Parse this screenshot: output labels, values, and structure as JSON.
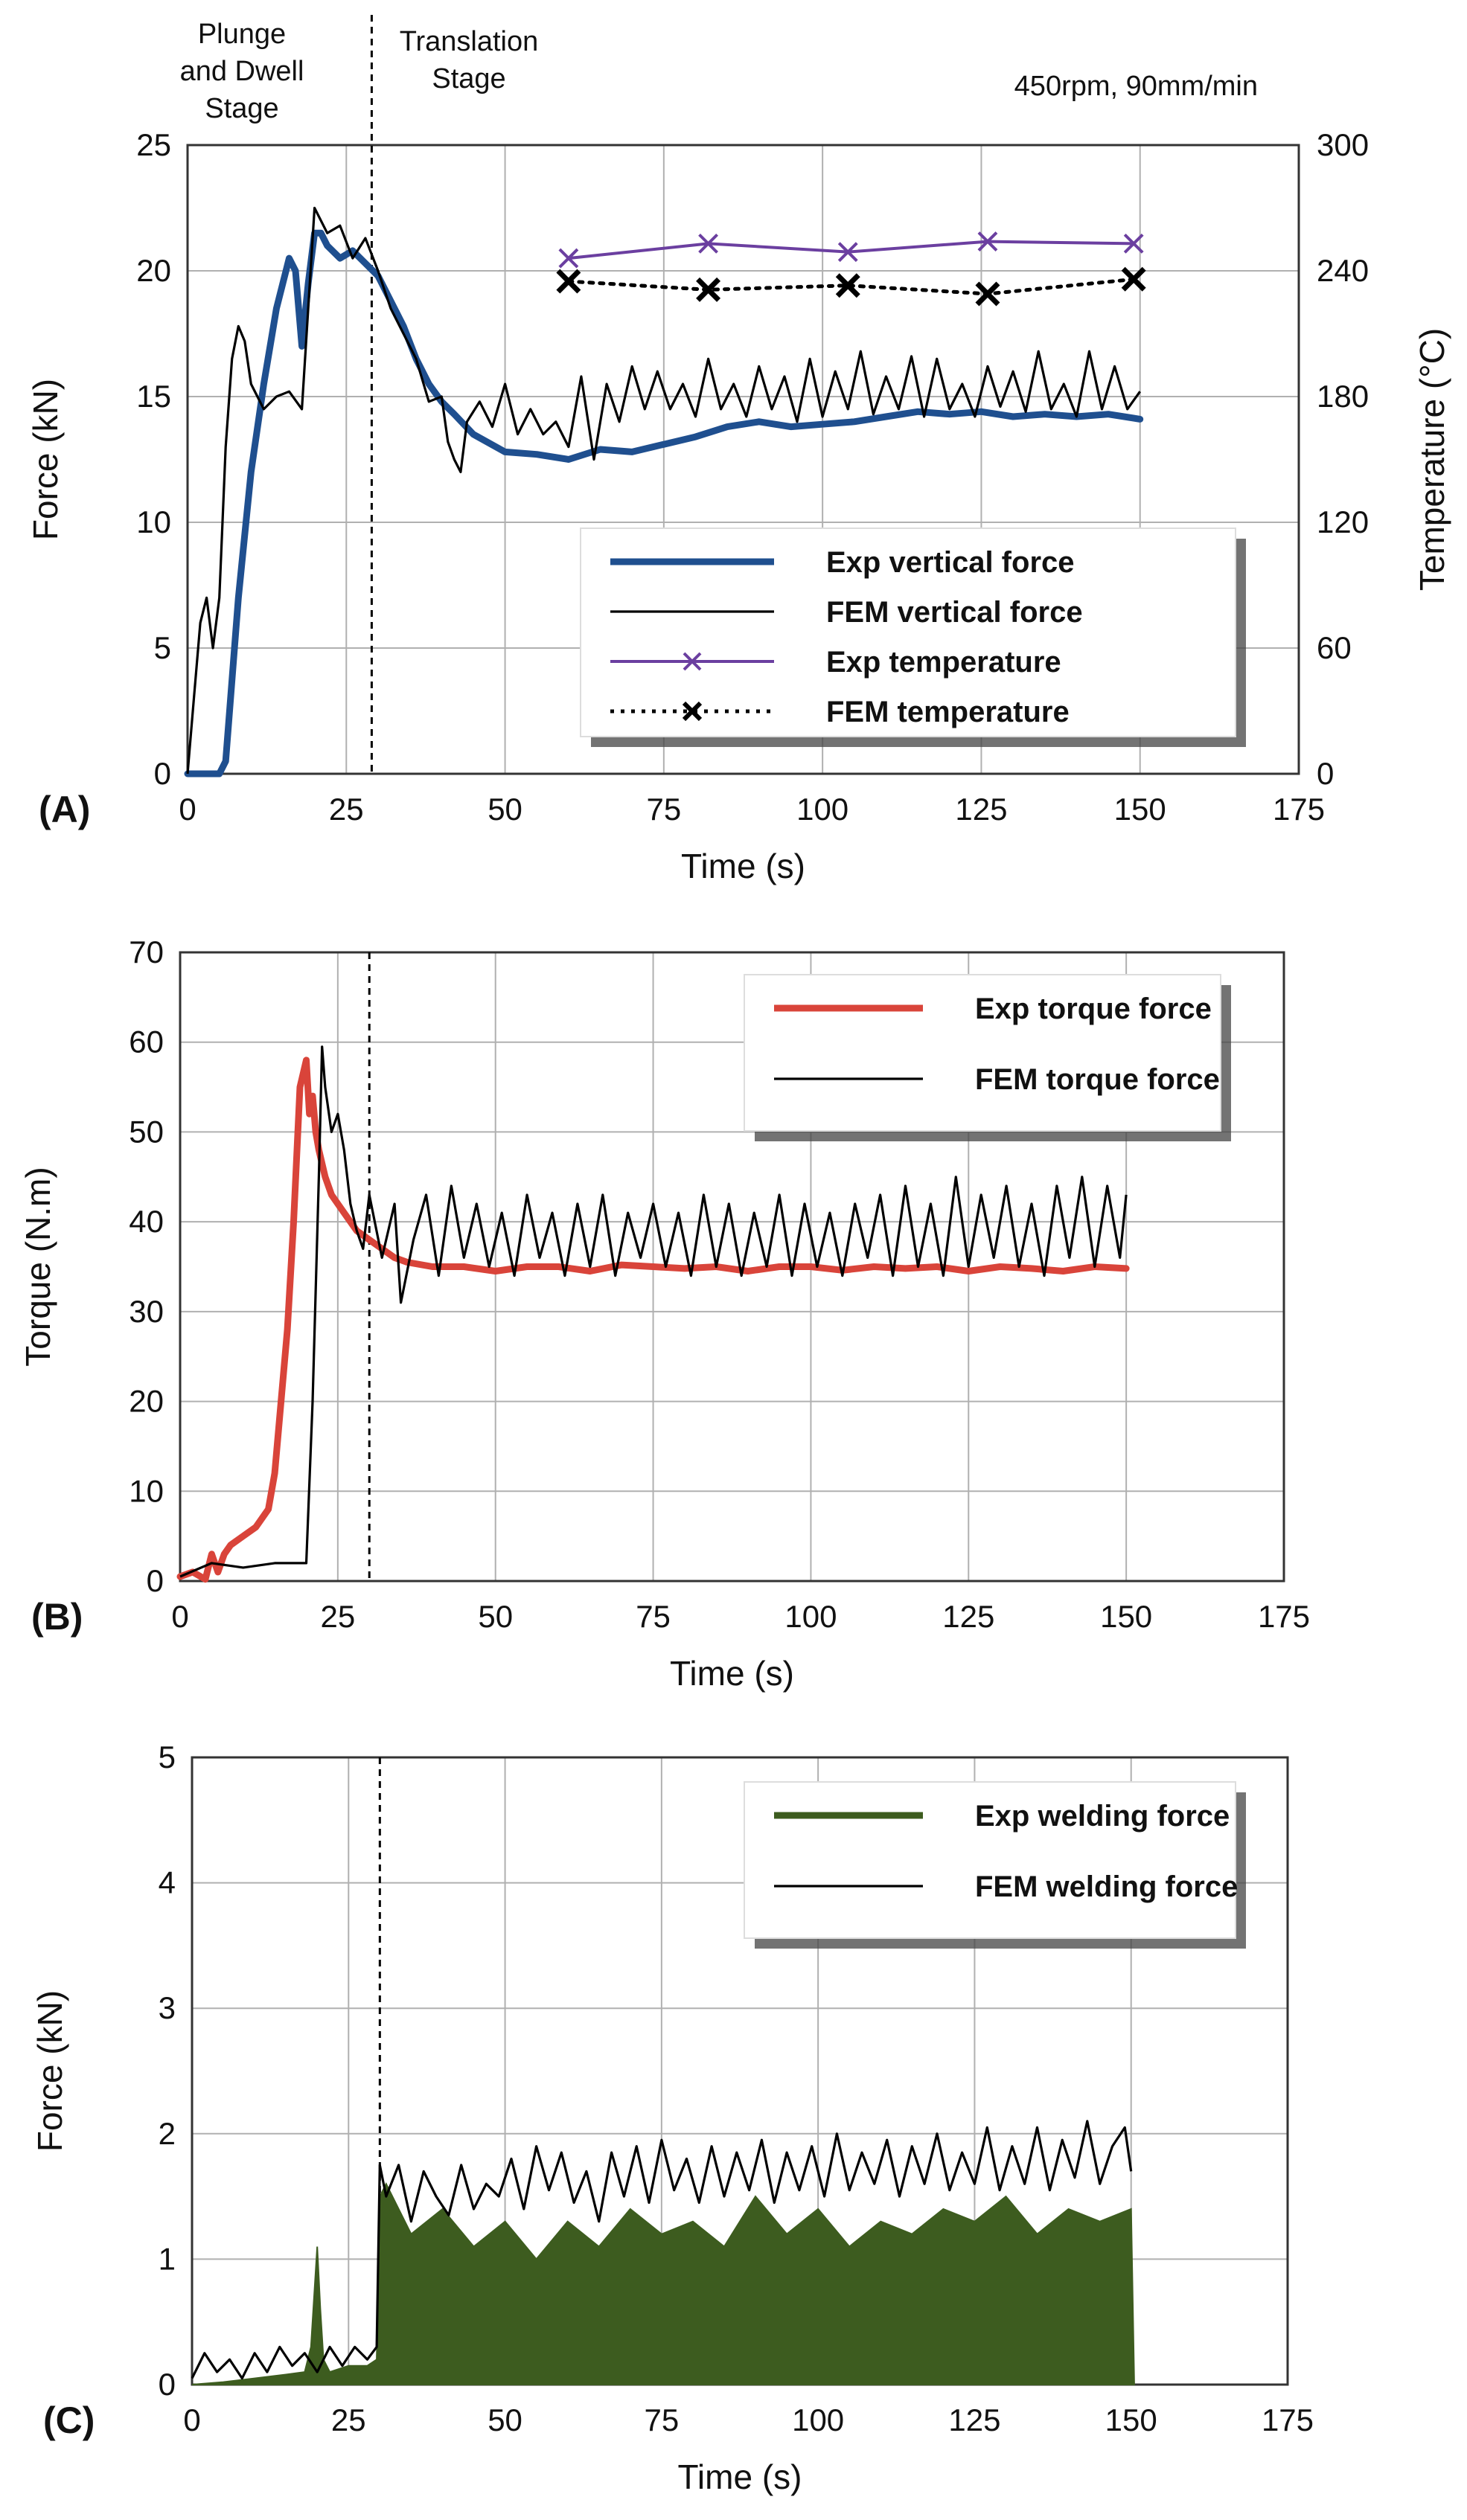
{
  "figure": {
    "annotations": {
      "stage1": [
        "Plunge",
        "and Dwell",
        "Stage"
      ],
      "stage2": [
        "Translation",
        "Stage"
      ],
      "params": "450rpm, 90mm/min"
    }
  },
  "colors": {
    "exp_vertical": "#1f4f8f",
    "fem": "#000000",
    "exp_temp": "#6b3fa0",
    "exp_torque": "#d9443a",
    "exp_weld": "#3d5c1f",
    "grid": "#b0b0b0"
  },
  "chart_data": [
    {
      "type": "line",
      "panel_label": "(A)",
      "xlabel": "Time (s)",
      "ylabel": "Force (kN)",
      "y2label": "Temperature (°C)",
      "xlim": [
        0,
        175
      ],
      "ylim": [
        0,
        25
      ],
      "y2lim": [
        0,
        300
      ],
      "xticks": [
        "0",
        "25",
        "50",
        "75",
        "100",
        "125",
        "150",
        "175"
      ],
      "yticks": [
        "0",
        "5",
        "10",
        "15",
        "20",
        "25"
      ],
      "y2ticks": [
        "0",
        "60",
        "120",
        "180",
        "240",
        "300"
      ],
      "stage_divider_x": 29,
      "legend_position": "bottom-right",
      "series": [
        {
          "name": "Exp vertical force",
          "axis": "left",
          "style": "thick",
          "color_key": "exp_vertical",
          "x": [
            0,
            5,
            6,
            8,
            10,
            12,
            14,
            16,
            17,
            18,
            19,
            20,
            21,
            22,
            24,
            26,
            28,
            30,
            32,
            34,
            36,
            38,
            40,
            42,
            45,
            50,
            55,
            60,
            65,
            70,
            75,
            80,
            85,
            90,
            95,
            100,
            105,
            110,
            115,
            120,
            125,
            130,
            135,
            140,
            145,
            150
          ],
          "values": [
            0,
            0,
            0.5,
            7,
            12,
            15.5,
            18.5,
            20.5,
            20,
            17,
            19.5,
            21.5,
            21.5,
            21,
            20.5,
            20.8,
            20.3,
            19.8,
            18.8,
            17.8,
            16.5,
            15.5,
            14.8,
            14.3,
            13.5,
            12.8,
            12.7,
            12.5,
            12.9,
            12.8,
            13.1,
            13.4,
            13.8,
            14.0,
            13.8,
            13.9,
            14.0,
            14.2,
            14.4,
            14.3,
            14.4,
            14.2,
            14.3,
            14.2,
            14.3,
            14.1
          ]
        },
        {
          "name": "FEM vertical force",
          "axis": "left",
          "style": "thin",
          "color_key": "fem",
          "x": [
            0,
            1,
            2,
            3,
            4,
            5,
            6,
            7,
            8,
            9,
            10,
            12,
            14,
            16,
            18,
            20,
            22,
            24,
            26,
            28,
            30,
            32,
            34,
            36,
            38,
            40,
            41,
            42,
            43,
            44,
            46,
            48,
            50,
            52,
            54,
            56,
            58,
            60,
            62,
            64,
            66,
            68,
            70,
            72,
            74,
            76,
            78,
            80,
            82,
            84,
            86,
            88,
            90,
            92,
            94,
            96,
            98,
            100,
            102,
            104,
            106,
            108,
            110,
            112,
            114,
            116,
            118,
            120,
            122,
            124,
            126,
            128,
            130,
            132,
            134,
            136,
            138,
            140,
            142,
            144,
            146,
            148,
            150
          ],
          "values": [
            0,
            3,
            6,
            7,
            5,
            7,
            13,
            16.5,
            17.8,
            17.2,
            15.5,
            14.5,
            15,
            15.2,
            14.5,
            22.5,
            21.5,
            21.8,
            20.5,
            21.3,
            20,
            18.5,
            17.5,
            16.5,
            14.8,
            15,
            13.2,
            12.5,
            12,
            14,
            14.8,
            13.8,
            15.5,
            13.5,
            14.5,
            13.5,
            14,
            13,
            15.8,
            12.5,
            15.5,
            14,
            16.2,
            14.5,
            16,
            14.5,
            15.5,
            14.2,
            16.5,
            14.5,
            15.5,
            14.2,
            16.2,
            14.5,
            15.8,
            14,
            16.5,
            14.2,
            16,
            14.5,
            16.8,
            14.3,
            15.8,
            14.5,
            16.6,
            14.2,
            16.5,
            14.5,
            15.5,
            14.2,
            16.2,
            14.6,
            16,
            14.4,
            16.8,
            14.5,
            15.5,
            14.2,
            16.8,
            14.5,
            16.2,
            14.5,
            15.2
          ]
        },
        {
          "name": "Exp temperature",
          "axis": "right",
          "style": "marker-line",
          "color_key": "exp_temp",
          "x": [
            60,
            82,
            104,
            126,
            149
          ],
          "values": [
            246,
            253,
            249,
            254,
            253
          ]
        },
        {
          "name": "FEM temperature",
          "axis": "right",
          "style": "dotted-marker",
          "color_key": "fem",
          "x": [
            60,
            82,
            104,
            126,
            149
          ],
          "values": [
            235,
            231,
            233,
            229,
            236
          ]
        }
      ]
    },
    {
      "type": "line",
      "panel_label": "(B)",
      "xlabel": "Time (s)",
      "ylabel": "Torque (N.m)",
      "xlim": [
        0,
        175
      ],
      "ylim": [
        0,
        70
      ],
      "xticks": [
        "0",
        "25",
        "50",
        "75",
        "100",
        "125",
        "150",
        "175"
      ],
      "yticks": [
        "0",
        "10",
        "20",
        "30",
        "40",
        "50",
        "60",
        "70"
      ],
      "stage_divider_x": 30,
      "legend_position": "top-right",
      "series": [
        {
          "name": "Exp torque force",
          "style": "thick",
          "color_key": "exp_torque",
          "x": [
            0,
            2,
            4,
            5,
            6,
            7,
            8,
            10,
            12,
            14,
            15,
            16,
            17,
            18,
            19,
            20,
            20.5,
            21,
            21.5,
            22,
            23,
            24,
            26,
            28,
            30,
            32,
            34,
            36,
            40,
            45,
            50,
            55,
            60,
            65,
            70,
            75,
            80,
            85,
            90,
            95,
            100,
            105,
            110,
            115,
            120,
            125,
            130,
            135,
            140,
            145,
            150
          ],
          "values": [
            0.5,
            1,
            0.2,
            3,
            1,
            3,
            4,
            5,
            6,
            8,
            12,
            20,
            28,
            40,
            55,
            58,
            52,
            54,
            50,
            48,
            45,
            43,
            41,
            39,
            38,
            37,
            36,
            35.5,
            35,
            35,
            34.5,
            35,
            35,
            34.5,
            35.2,
            35,
            34.8,
            35,
            34.5,
            35,
            35,
            34.6,
            35,
            34.8,
            35,
            34.5,
            35,
            34.8,
            34.5,
            35,
            34.8
          ]
        },
        {
          "name": "FEM torque force",
          "style": "thin",
          "color_key": "fem",
          "x": [
            0,
            5,
            10,
            15,
            18,
            20,
            21,
            22,
            22.5,
            23,
            24,
            25,
            26,
            27,
            28,
            29,
            30,
            32,
            34,
            35,
            37,
            39,
            41,
            43,
            45,
            47,
            49,
            51,
            53,
            55,
            57,
            59,
            61,
            63,
            65,
            67,
            69,
            71,
            73,
            75,
            77,
            79,
            81,
            83,
            85,
            87,
            89,
            91,
            93,
            95,
            97,
            99,
            101,
            103,
            105,
            107,
            109,
            111,
            113,
            115,
            117,
            119,
            121,
            123,
            125,
            127,
            129,
            131,
            133,
            135,
            137,
            139,
            141,
            143,
            145,
            147,
            149,
            150
          ],
          "values": [
            0.5,
            2,
            1.5,
            2,
            2,
            2,
            20,
            45,
            59.5,
            55,
            50,
            52,
            48,
            42,
            39,
            37,
            43,
            36,
            42,
            31,
            38,
            43,
            34,
            44,
            36,
            42,
            35,
            41,
            34,
            43,
            36,
            41,
            34,
            42,
            35,
            43,
            34,
            41,
            36,
            42,
            35,
            41,
            34,
            43,
            35,
            42,
            34,
            41,
            35,
            43,
            34,
            42,
            35,
            41,
            34,
            42,
            36,
            43,
            34,
            44,
            35,
            42,
            34,
            45,
            35,
            43,
            36,
            44,
            35,
            42,
            34,
            44,
            36,
            45,
            35,
            44,
            36,
            43
          ]
        }
      ]
    },
    {
      "type": "line",
      "panel_label": "(C)",
      "xlabel": "Time (s)",
      "ylabel": "Force (kN)",
      "xlim": [
        0,
        175
      ],
      "ylim": [
        0,
        5
      ],
      "xticks": [
        "0",
        "25",
        "50",
        "75",
        "100",
        "125",
        "150",
        "175"
      ],
      "yticks": [
        "0",
        "1",
        "2",
        "3",
        "4",
        "5"
      ],
      "stage_divider_x": 30,
      "legend_position": "top-right",
      "series": [
        {
          "name": "Exp welding force",
          "style": "filled-noise",
          "color_key": "exp_weld",
          "x": [
            0,
            5,
            10,
            15,
            18,
            19,
            20,
            20.5,
            21,
            22,
            25,
            28,
            29.5,
            30,
            31,
            35,
            40,
            45,
            50,
            55,
            60,
            65,
            70,
            75,
            80,
            85,
            90,
            95,
            100,
            105,
            110,
            115,
            120,
            125,
            130,
            135,
            140,
            145,
            150,
            150.5
          ],
          "values": [
            0,
            0.02,
            0.05,
            0.08,
            0.1,
            0.3,
            1.1,
            0.6,
            0.2,
            0.1,
            0.15,
            0.15,
            0.2,
            1.5,
            1.6,
            1.2,
            1.4,
            1.1,
            1.3,
            1.0,
            1.3,
            1.1,
            1.4,
            1.2,
            1.3,
            1.1,
            1.5,
            1.2,
            1.4,
            1.1,
            1.3,
            1.2,
            1.4,
            1.3,
            1.5,
            1.2,
            1.4,
            1.3,
            1.4,
            0
          ]
        },
        {
          "name": "FEM welding force",
          "style": "thin",
          "color_key": "fem",
          "x": [
            0,
            2,
            4,
            6,
            8,
            10,
            12,
            14,
            16,
            18,
            20,
            22,
            24,
            26,
            28,
            29.5,
            30,
            31,
            33,
            35,
            37,
            39,
            41,
            43,
            45,
            47,
            49,
            51,
            53,
            55,
            57,
            59,
            61,
            63,
            65,
            67,
            69,
            71,
            73,
            75,
            77,
            79,
            81,
            83,
            85,
            87,
            89,
            91,
            93,
            95,
            97,
            99,
            101,
            103,
            105,
            107,
            109,
            111,
            113,
            115,
            117,
            119,
            121,
            123,
            125,
            127,
            129,
            131,
            133,
            135,
            137,
            139,
            141,
            143,
            145,
            147,
            149,
            150
          ],
          "values": [
            0.05,
            0.25,
            0.1,
            0.2,
            0.05,
            0.25,
            0.1,
            0.3,
            0.15,
            0.25,
            0.1,
            0.3,
            0.15,
            0.3,
            0.2,
            0.3,
            1.75,
            1.5,
            1.75,
            1.3,
            1.7,
            1.5,
            1.35,
            1.75,
            1.4,
            1.6,
            1.5,
            1.8,
            1.4,
            1.9,
            1.55,
            1.85,
            1.45,
            1.7,
            1.3,
            1.85,
            1.5,
            1.9,
            1.45,
            1.95,
            1.55,
            1.8,
            1.45,
            1.9,
            1.5,
            1.85,
            1.55,
            1.95,
            1.45,
            1.85,
            1.55,
            1.9,
            1.5,
            2.0,
            1.55,
            1.85,
            1.6,
            1.95,
            1.5,
            1.9,
            1.6,
            2.0,
            1.55,
            1.85,
            1.6,
            2.05,
            1.55,
            1.9,
            1.6,
            2.05,
            1.55,
            1.95,
            1.65,
            2.1,
            1.6,
            1.9,
            2.05,
            1.7
          ]
        }
      ]
    }
  ]
}
